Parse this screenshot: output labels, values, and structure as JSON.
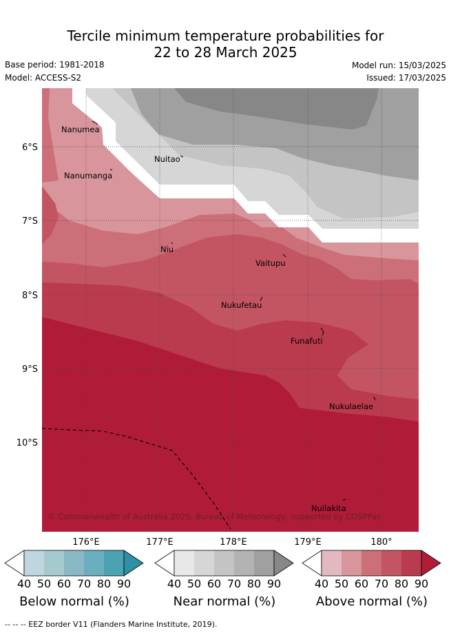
{
  "title_line1": "Tercile minimum temperature probabilities for",
  "title_line2": "22 to 28 March 2025",
  "base_period": "Base period: 1981-2018",
  "model": "Model: ACCESS-S2",
  "model_run": "Model run: 15/03/2025",
  "issued": "Issued: 17/03/2025",
  "lon_labels": [
    "176°E",
    "177°E",
    "178°E",
    "179°E",
    "180°"
  ],
  "lat_labels": [
    "6°S",
    "7°S",
    "8°S",
    "9°S",
    "10°S"
  ],
  "places": [
    "Nanumea",
    "Nanumanga",
    "Nuitao",
    "Niu",
    "Vaitupu",
    "Nukufetau",
    "Funafuti",
    "Nukulaelae",
    "Nuilakita"
  ],
  "copyright": "© Commonwealth of Australia 2025, Bureau of Meteorology, supported by COSPPac",
  "colorbars": [
    {
      "label": "Below normal (%)",
      "ticks": [
        "40",
        "50",
        "60",
        "70",
        "80",
        "90"
      ],
      "colors": [
        "#ffffff",
        "#bed6de",
        "#a6c9cf",
        "#8ab8c5",
        "#6aafbe",
        "#4aa3b3",
        "#2e8fa5"
      ]
    },
    {
      "label": "Near normal (%)",
      "ticks": [
        "40",
        "50",
        "60",
        "70",
        "80",
        "90"
      ],
      "colors": [
        "#ffffff",
        "#e8e8e8",
        "#d6d6d6",
        "#c4c4c4",
        "#b3b3b3",
        "#a0a0a0",
        "#878787"
      ]
    },
    {
      "label": "Above normal (%)",
      "ticks": [
        "40",
        "50",
        "60",
        "70",
        "80",
        "90"
      ],
      "colors": [
        "#ffffff",
        "#e2b9c0",
        "#d8959c",
        "#cd6f78",
        "#c35563",
        "#bb3b4e",
        "#b01c38"
      ]
    }
  ],
  "footer": "--  --  -- EEZ border V11 (Flanders Marine Institute, 2019)."
}
